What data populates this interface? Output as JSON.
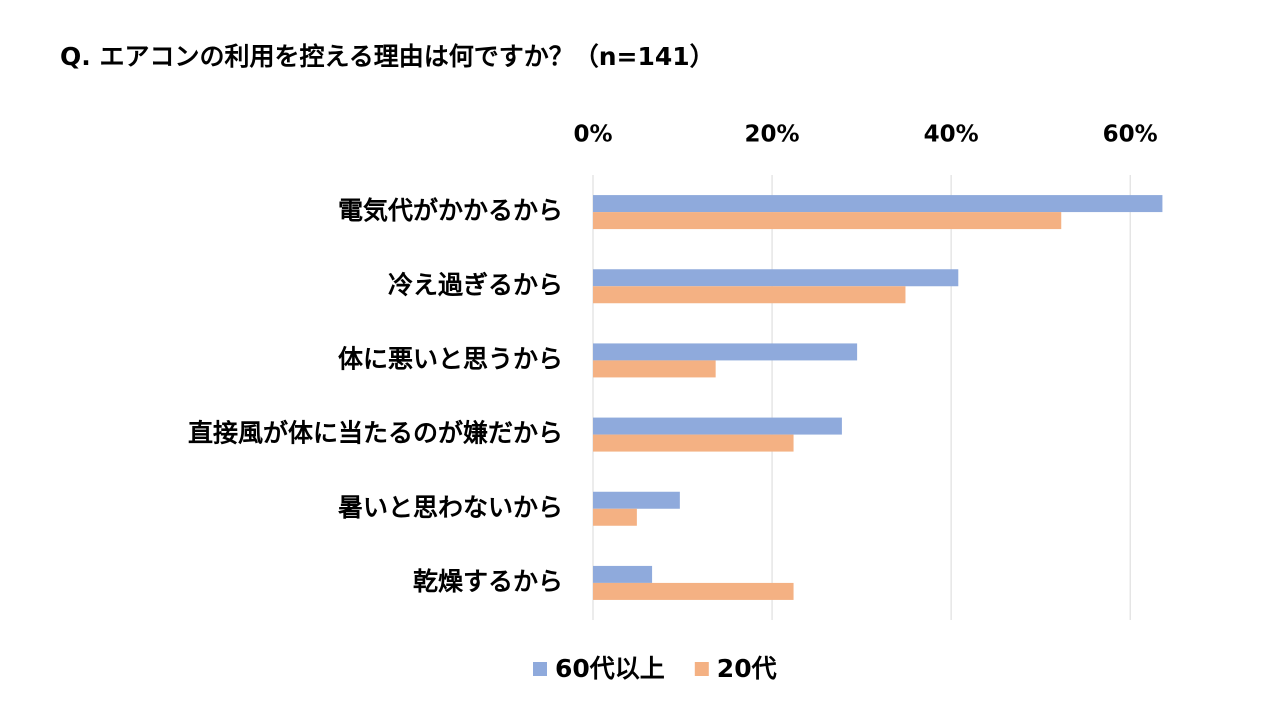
{
  "chart_data": {
    "type": "bar",
    "orientation": "horizontal",
    "title": "Q. エアコンの利用を控える理由は何ですか？（n=141）",
    "categories": [
      "電気代がかかるから",
      "冷え過ぎるから",
      "体に悪いと思うから",
      "直接風が体に当たるのが嫌だから",
      "暑いと思わないから",
      "乾燥するから"
    ],
    "series": [
      {
        "name": "60代以上",
        "color": "#8faadc",
        "values": [
          63.6,
          40.8,
          29.5,
          27.8,
          9.7,
          6.6
        ]
      },
      {
        "name": "20代",
        "color": "#f4b183",
        "values": [
          52.3,
          34.9,
          13.7,
          22.4,
          4.9,
          22.4
        ]
      }
    ],
    "xlim": [
      0,
      64
    ],
    "xticks": [
      {
        "value": 0,
        "label": "0%"
      },
      {
        "value": 20,
        "label": "20%"
      },
      {
        "value": 40,
        "label": "40%"
      },
      {
        "value": 60,
        "label": "60%"
      }
    ],
    "grid": true,
    "legend": "bottom"
  }
}
